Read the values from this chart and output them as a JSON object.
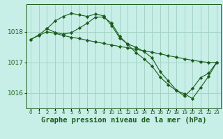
{
  "background_color": "#c8eee8",
  "line_color": "#1a5c1a",
  "grid_color": "#9ecfbf",
  "xlabel": "Graphe pression niveau de la mer (hPa)",
  "xlabel_fontsize": 7.5,
  "ylim": [
    1015.5,
    1018.9
  ],
  "yticks": [
    1016,
    1017,
    1018
  ],
  "xlim": [
    -0.5,
    23.5
  ],
  "xticks": [
    0,
    1,
    2,
    3,
    4,
    5,
    6,
    7,
    8,
    9,
    10,
    11,
    12,
    13,
    14,
    15,
    16,
    17,
    18,
    19,
    20,
    21,
    22,
    23
  ],
  "line1_x": [
    0,
    1,
    2,
    3,
    4,
    5,
    6,
    7,
    8,
    9,
    10,
    11,
    12,
    13,
    14,
    15,
    16,
    17,
    18,
    19,
    20,
    21,
    22,
    23
  ],
  "line1_y": [
    1017.75,
    1017.9,
    1018.1,
    1018.35,
    1018.5,
    1018.6,
    1018.55,
    1018.5,
    1018.58,
    1018.52,
    1018.2,
    1017.8,
    1017.6,
    1017.5,
    1017.35,
    1017.15,
    1016.7,
    1016.4,
    1016.1,
    1015.9,
    1016.15,
    1016.5,
    1016.65,
    1017.0
  ],
  "line2_x": [
    0,
    1,
    2,
    3,
    4,
    5,
    6,
    7,
    8,
    9,
    10,
    11,
    12,
    13,
    14,
    15,
    16,
    17,
    18,
    19,
    20,
    21,
    22,
    23
  ],
  "line2_y": [
    1017.75,
    1017.88,
    1018.0,
    1017.95,
    1017.88,
    1017.82,
    1017.78,
    1017.72,
    1017.67,
    1017.62,
    1017.57,
    1017.52,
    1017.48,
    1017.43,
    1017.38,
    1017.33,
    1017.28,
    1017.22,
    1017.17,
    1017.12,
    1017.07,
    1017.03,
    1017.0,
    1017.0
  ],
  "line3_x": [
    2,
    3,
    4,
    5,
    6,
    7,
    8,
    9,
    10,
    11,
    12,
    13,
    14,
    15,
    16,
    17,
    18,
    19,
    20,
    21,
    22,
    23
  ],
  "line3_y": [
    1018.1,
    1017.98,
    1017.92,
    1017.97,
    1018.12,
    1018.28,
    1018.48,
    1018.48,
    1018.28,
    1017.85,
    1017.58,
    1017.32,
    1017.12,
    1016.88,
    1016.52,
    1016.28,
    1016.08,
    1015.98,
    1015.82,
    1016.18,
    1016.55,
    1017.0
  ]
}
